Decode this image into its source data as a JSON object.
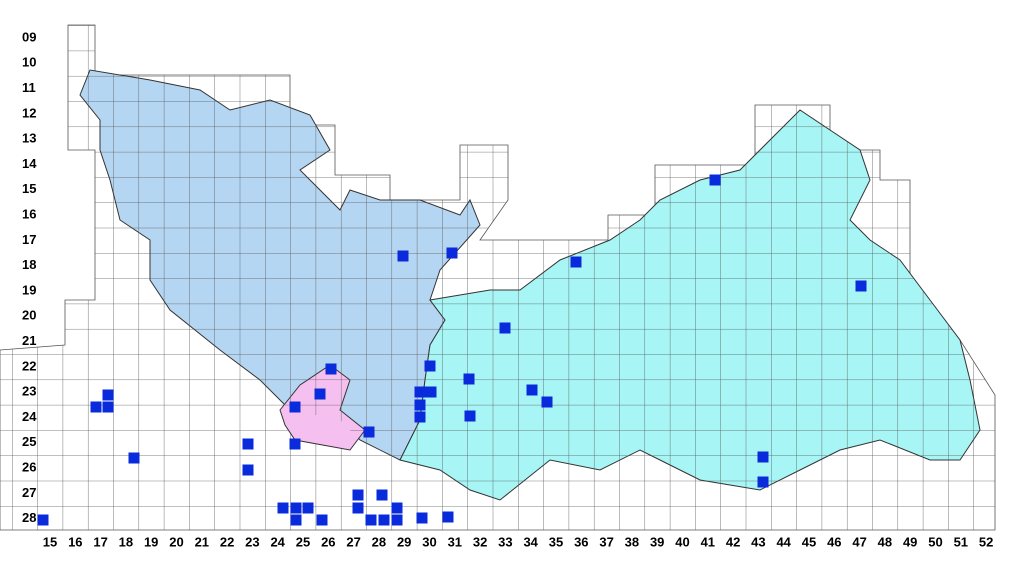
{
  "map": {
    "row_labels": [
      "09",
      "10",
      "11",
      "12",
      "13",
      "14",
      "15",
      "16",
      "17",
      "18",
      "19",
      "20",
      "21",
      "22",
      "23",
      "24",
      "25",
      "26",
      "27",
      "28"
    ],
    "column_labels": [
      "15",
      "16",
      "17",
      "18",
      "19",
      "20",
      "21",
      "22",
      "23",
      "24",
      "25",
      "26",
      "27",
      "28",
      "29",
      "30",
      "31",
      "32",
      "33",
      "34",
      "35",
      "36",
      "37",
      "38",
      "39",
      "40",
      "41",
      "42",
      "43",
      "44",
      "45",
      "46",
      "47",
      "48",
      "49",
      "50",
      "51",
      "52"
    ]
  }
}
